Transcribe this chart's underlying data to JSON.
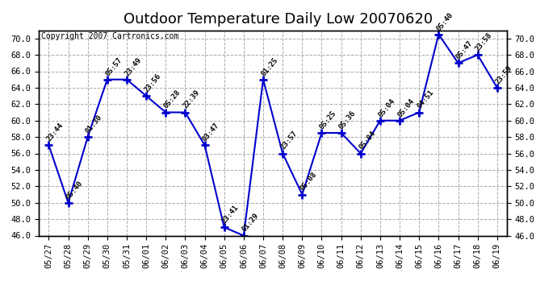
{
  "title": "Outdoor Temperature Daily Low 20070620",
  "copyright": "Copyright 2007 Cartronics.com",
  "dates": [
    "05/27",
    "05/28",
    "05/29",
    "05/30",
    "05/31",
    "06/01",
    "06/02",
    "06/03",
    "06/04",
    "06/05",
    "06/06",
    "06/07",
    "06/08",
    "06/09",
    "06/10",
    "06/11",
    "06/12",
    "06/13",
    "06/14",
    "06/15",
    "06/16",
    "06/17",
    "06/18",
    "06/19"
  ],
  "values": [
    57.0,
    50.0,
    58.0,
    65.0,
    65.0,
    63.0,
    61.0,
    61.0,
    57.0,
    47.0,
    46.0,
    65.0,
    56.0,
    51.0,
    58.5,
    58.5,
    56.0,
    60.0,
    60.0,
    61.0,
    70.5,
    67.0,
    68.0,
    64.0
  ],
  "times": [
    "23:44",
    "05:40",
    "01:30",
    "05:57",
    "23:49",
    "23:56",
    "05:28",
    "22:39",
    "03:47",
    "23:41",
    "01:29",
    "01:25",
    "23:57",
    "05:08",
    "05:25",
    "05:36",
    "05:04",
    "05:04",
    "05:04",
    "04:51",
    "05:40",
    "05:47",
    "23:58",
    "23:59"
  ],
  "ylim": [
    46.0,
    71.0
  ],
  "yticks": [
    46.0,
    48.0,
    50.0,
    52.0,
    54.0,
    56.0,
    58.0,
    60.0,
    62.0,
    64.0,
    66.0,
    68.0,
    70.0
  ],
  "line_color": "#0000CC",
  "marker_color": "#0000CC",
  "bg_color": "#FFFFFF",
  "plot_bg_color": "#FFFFFF",
  "grid_color": "#AAAAAA",
  "title_fontsize": 13,
  "tick_fontsize": 7.5,
  "annotation_fontsize": 6.5,
  "copyright_fontsize": 7
}
